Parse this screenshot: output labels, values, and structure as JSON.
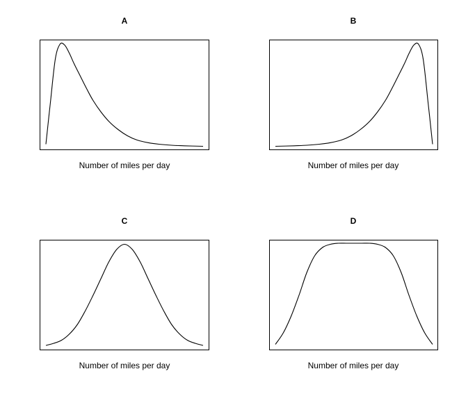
{
  "chart_data": [
    {
      "type": "line",
      "title": "A",
      "xlabel": "Number of miles per day",
      "ylabel": "",
      "shape": "right-skewed",
      "series": [
        {
          "x": [
            0,
            0.03,
            0.06,
            0.09,
            0.12,
            0.15,
            0.18,
            0.22,
            0.26,
            0.3,
            0.35,
            0.4,
            0.46,
            0.52,
            0.58,
            0.65,
            0.72,
            0.8,
            0.88,
            1.0
          ],
          "values": [
            0.03,
            0.45,
            0.85,
            0.99,
            0.98,
            0.9,
            0.8,
            0.68,
            0.56,
            0.45,
            0.34,
            0.25,
            0.17,
            0.11,
            0.07,
            0.045,
            0.03,
            0.02,
            0.015,
            0.01
          ]
        }
      ]
    },
    {
      "type": "line",
      "title": "B",
      "xlabel": "Number of miles per day",
      "ylabel": "",
      "shape": "left-skewed",
      "series": [
        {
          "x": [
            0,
            0.12,
            0.2,
            0.28,
            0.35,
            0.42,
            0.48,
            0.54,
            0.6,
            0.65,
            0.7,
            0.74,
            0.78,
            0.82,
            0.85,
            0.88,
            0.91,
            0.94,
            0.97,
            1.0
          ],
          "values": [
            0.01,
            0.015,
            0.02,
            0.03,
            0.045,
            0.07,
            0.11,
            0.17,
            0.25,
            0.34,
            0.45,
            0.56,
            0.68,
            0.8,
            0.9,
            0.98,
            0.99,
            0.85,
            0.45,
            0.03
          ]
        }
      ]
    },
    {
      "type": "line",
      "title": "C",
      "xlabel": "Number of miles per day",
      "ylabel": "",
      "shape": "bell-shaped",
      "series": [
        {
          "x": [
            0,
            0.05,
            0.1,
            0.15,
            0.2,
            0.25,
            0.3,
            0.35,
            0.4,
            0.45,
            0.5,
            0.55,
            0.6,
            0.65,
            0.7,
            0.75,
            0.8,
            0.85,
            0.9,
            0.95,
            1.0
          ],
          "values": [
            0.02,
            0.04,
            0.07,
            0.13,
            0.22,
            0.35,
            0.5,
            0.66,
            0.82,
            0.94,
            0.99,
            0.94,
            0.82,
            0.66,
            0.5,
            0.35,
            0.22,
            0.13,
            0.07,
            0.04,
            0.02
          ]
        }
      ]
    },
    {
      "type": "line",
      "title": "D",
      "xlabel": "Number of miles per day",
      "ylabel": "",
      "shape": "flat-topped",
      "series": [
        {
          "x": [
            0,
            0.05,
            0.1,
            0.15,
            0.2,
            0.25,
            0.3,
            0.35,
            0.4,
            0.45,
            0.5,
            0.55,
            0.6,
            0.65,
            0.7,
            0.75,
            0.8,
            0.85,
            0.9,
            0.95,
            1.0
          ],
          "values": [
            0.03,
            0.14,
            0.3,
            0.5,
            0.72,
            0.88,
            0.96,
            0.99,
            1.0,
            1.0,
            1.0,
            1.0,
            1.0,
            0.99,
            0.96,
            0.88,
            0.72,
            0.5,
            0.3,
            0.14,
            0.03
          ]
        }
      ]
    }
  ]
}
